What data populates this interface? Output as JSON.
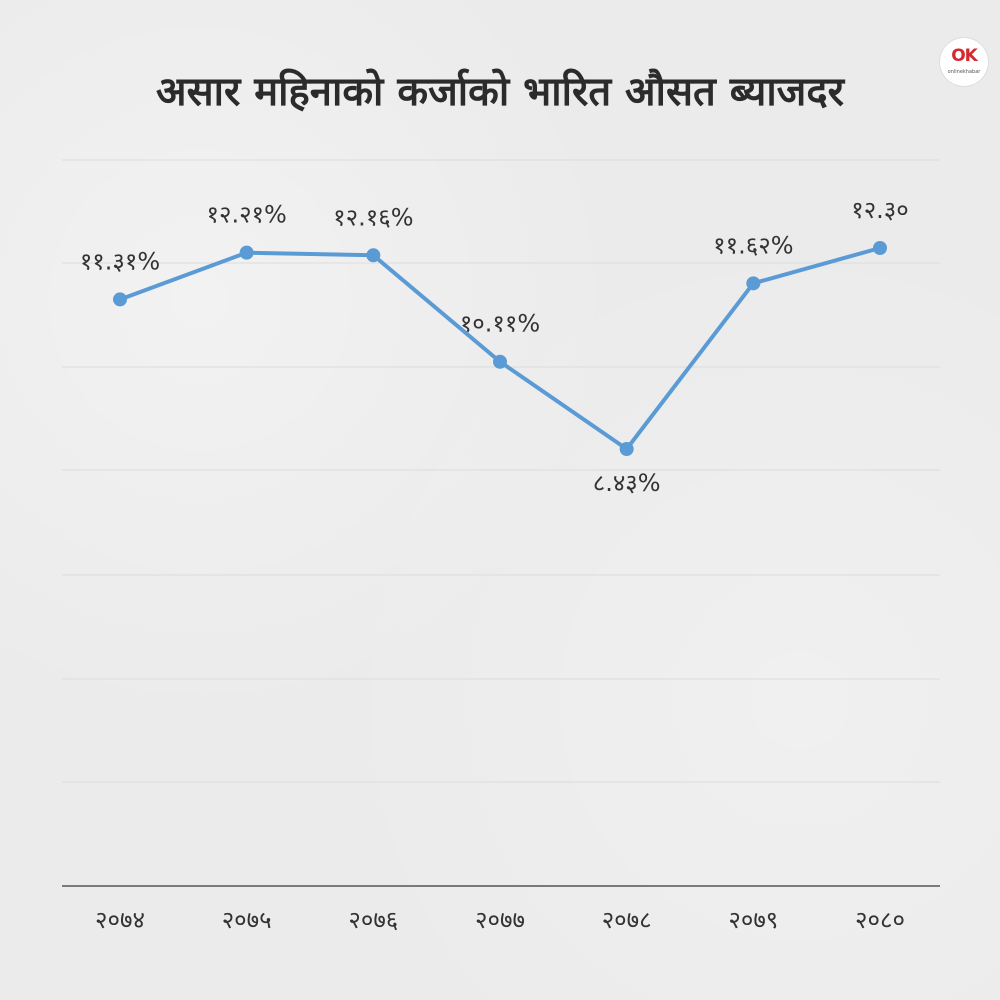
{
  "title": "असार महिनाको कर्जाको भारित औसत ब्याजदर",
  "logo": {
    "mark": "OK",
    "text": "onlinekhabar"
  },
  "colors": {
    "line": "#5b9bd5",
    "gridline": "#dcdcdc",
    "axis": "#555555",
    "text": "#333333",
    "background": "#ebebeb"
  },
  "chart_data": {
    "type": "line",
    "title": "असार महिनाको कर्जाको भारित औसत ब्याजदर",
    "xlabel": "",
    "ylabel": "",
    "grid": true,
    "categories": [
      "२०७४",
      "२०७५",
      "२०७६",
      "२०७७",
      "२०७८",
      "२०७९",
      "२०८०"
    ],
    "values": [
      11.31,
      12.21,
      12.16,
      10.11,
      8.43,
      11.62,
      12.3
    ],
    "data_labels": [
      "११.३१%",
      "१२.२१%",
      "१२.१६%",
      "१०.११%",
      "८.४३%",
      "११.६२%",
      "१२.३०"
    ],
    "ylim": [
      0,
      14
    ]
  }
}
